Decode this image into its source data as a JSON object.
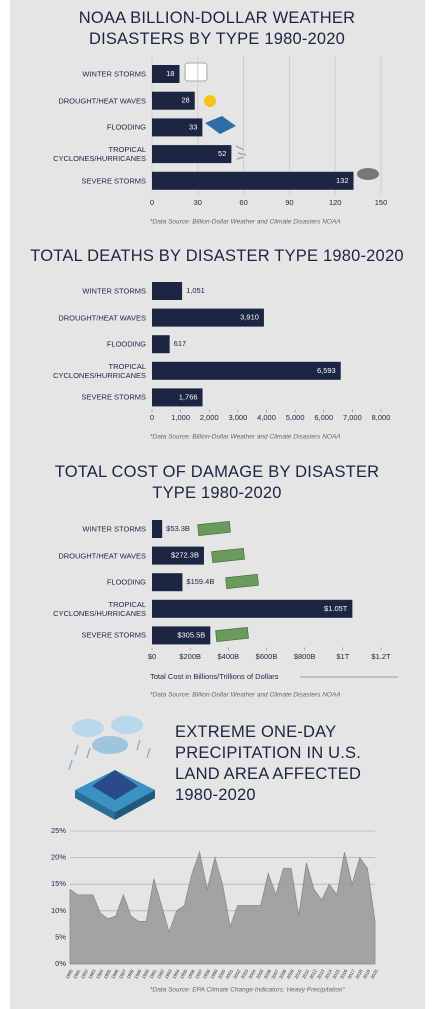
{
  "chart_data": [
    {
      "type": "bar",
      "title": "NOAA BILLION-DOLLAR WEATHER DISASTERS BY TYPE 1980-2020",
      "categories": [
        "WINTER STORMS",
        "DROUGHT/HEAT WAVES",
        "FLOODING",
        "TROPICAL CYCLONES/HURRICANES",
        "SEVERE STORMS"
      ],
      "values": [
        18,
        28,
        33,
        52,
        132
      ],
      "color": "#1c2541",
      "xlim": [
        0,
        150
      ],
      "xticks": [
        0,
        30,
        60,
        90,
        120,
        150
      ],
      "grid": true,
      "note": "*Data Source: Billion-Dollar Weather and Climate Disasters NOAA"
    },
    {
      "type": "bar",
      "title": "TOTAL DEATHS BY DISASTER TYPE 1980-2020",
      "categories": [
        "WINTER STORMS",
        "DROUGHT/HEAT WAVES",
        "FLOODING",
        "TROPICAL CYCLONES/HURRICANES",
        "SEVERE STORMS"
      ],
      "values": [
        1051,
        3910,
        617,
        6593,
        1766
      ],
      "value_labels": [
        "1,051",
        "3,910",
        "617",
        "6,593",
        "1,766"
      ],
      "color": "#1c2541",
      "xlim": [
        0,
        8000
      ],
      "xticks": [
        0,
        {
          "value": 1000,
          "label": "1,000"
        },
        {
          "value": 2000,
          "label": "2,000"
        },
        {
          "value": 3000,
          "label": "3,000"
        },
        {
          "value": 4000,
          "label": "4,000"
        },
        {
          "value": 5000,
          "label": "5,000"
        },
        {
          "value": 6000,
          "label": "6,000"
        },
        {
          "value": 7000,
          "label": "7,000"
        },
        {
          "value": 8000,
          "label": "8,000"
        }
      ],
      "grid": false,
      "note": "*Data Source: Billion-Dollar Weather and Climate Disasters NOAA"
    },
    {
      "type": "bar",
      "title": "TOTAL COST OF DAMAGE BY DISASTER TYPE 1980-2020",
      "categories": [
        "WINTER STORMS",
        "DROUGHT/HEAT WAVES",
        "FLOODING",
        "TROPICAL CYCLONES/HURRICANES",
        "SEVERE STORMS"
      ],
      "values": [
        53.3,
        272.3,
        159.4,
        1050,
        305.5
      ],
      "value_labels": [
        "$53.3B",
        "$272.3B",
        "$159.4B",
        "$1.05T",
        "$305.5B"
      ],
      "color": "#1c2541",
      "xlim": [
        0,
        1200
      ],
      "xticks": [
        {
          "value": 0,
          "label": "$0"
        },
        {
          "value": 200,
          "label": "$200B"
        },
        {
          "value": 400,
          "label": "$400B"
        },
        {
          "value": 600,
          "label": "$600B"
        },
        {
          "value": 800,
          "label": "$800B"
        },
        {
          "value": 1000,
          "label": "$1T"
        },
        {
          "value": 1200,
          "label": "$1.2T"
        }
      ],
      "grid": false,
      "x_label": "Total Cost in Billions/Trillions of Dollars",
      "note": "*Data Source: Billion-Dollar Weather and Climate Disasters NOAA"
    },
    {
      "type": "area",
      "title": "EXTREME ONE-DAY PRECIPITATION IN U.S. LAND AREA AFFECTED 1980-2020",
      "x": [
        1980,
        1981,
        1982,
        1983,
        1984,
        1985,
        1986,
        1987,
        1988,
        1989,
        1990,
        1991,
        1992,
        1993,
        1994,
        1995,
        1996,
        1997,
        1998,
        1999,
        2000,
        2001,
        2002,
        2003,
        2004,
        2005,
        2006,
        2007,
        2008,
        2009,
        2010,
        2011,
        2012,
        2013,
        2014,
        2015,
        2016,
        2017,
        2018,
        2019,
        2020
      ],
      "values": [
        14,
        13,
        13,
        13,
        9.5,
        8.5,
        9,
        13,
        9,
        8,
        8,
        16,
        11,
        6,
        10,
        11,
        17,
        21,
        14,
        20,
        15,
        7,
        11,
        11,
        11,
        11,
        17,
        13,
        18,
        18,
        9,
        19,
        14,
        12,
        15,
        13,
        21,
        15,
        20,
        18,
        8
      ],
      "color": "#9b9b9b",
      "xlim": [
        1980,
        2020
      ],
      "ylim": [
        0,
        25
      ],
      "yticks": [
        {
          "value": 0,
          "label": "0%"
        },
        {
          "value": 5,
          "label": "5%"
        },
        {
          "value": 10,
          "label": "10%"
        },
        {
          "value": 15,
          "label": "15%"
        },
        {
          "value": 20,
          "label": "20%"
        },
        {
          "value": 25,
          "label": "25%"
        }
      ],
      "grid": true,
      "note": "*Data Source: EPA Climate Change Indicators: Heavy Precipitation\""
    }
  ]
}
